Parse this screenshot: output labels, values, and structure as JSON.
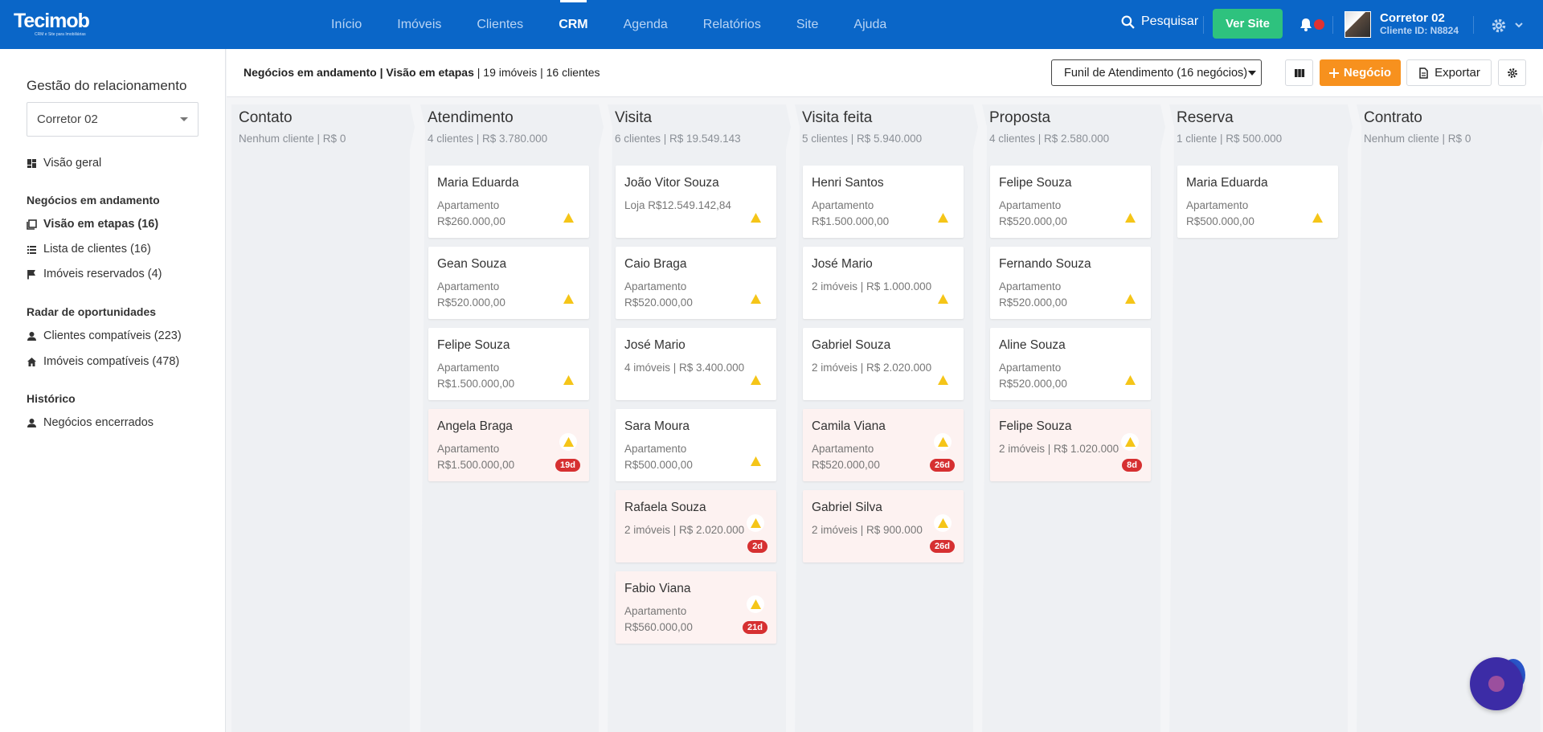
{
  "header": {
    "logo_text": "Tecimob",
    "logo_tagline": "CRM e Site para Imobiliárias",
    "nav": [
      "Início",
      "Imóveis",
      "Clientes",
      "CRM",
      "Agenda",
      "Relatórios",
      "Site",
      "Ajuda"
    ],
    "active_nav": "CRM",
    "search_label": "Pesquisar",
    "site_button": "Ver Site",
    "user_name": "Corretor 02",
    "client_id": "Cliente ID: N8824"
  },
  "sidebar": {
    "title": "Gestão do relacionamento",
    "selected_broker": "Corretor 02",
    "overview": "Visão geral",
    "section_ongoing": "Negócios em andamento",
    "stages_view": "Visão em etapas (16)",
    "client_list": "Lista de clientes (16)",
    "reserved": "Imóveis reservados (4)",
    "section_radar": "Radar de oportunidades",
    "compat_clients": "Clientes compatíveis (223)",
    "compat_props": "Imóveis compatíveis (478)",
    "section_history": "Histórico",
    "closed": "Negócios encerrados"
  },
  "toolbar": {
    "crumb_bold": "Negócios em andamento | Visão em etapas",
    "crumb_rest": " | 19 imóveis | 16 clientes",
    "funnel": "Funil de Atendimento (16 negócios)",
    "new_deal": "Negócio",
    "export": "Exportar"
  },
  "columns": [
    {
      "title": "Contato",
      "meta": "Nenhum cliente | R$ 0",
      "cards": []
    },
    {
      "title": "Atendimento",
      "meta": "4 clientes | R$ 3.780.000",
      "cards": [
        {
          "name": "Maria Eduarda",
          "desc": "Apartamento R$260.000,00"
        },
        {
          "name": "Gean Souza",
          "desc": "Apartamento R$520.000,00"
        },
        {
          "name": "Felipe Souza",
          "desc": "Apartamento R$1.500.000,00"
        },
        {
          "name": "Angela Braga",
          "desc": "Apartamento R$1.500.000,00",
          "days": "19d"
        }
      ]
    },
    {
      "title": "Visita",
      "meta": "6 clientes | R$ 19.549.143",
      "cards": [
        {
          "name": "João Vitor Souza",
          "desc": "Loja R$12.549.142,84"
        },
        {
          "name": "Caio Braga",
          "desc": "Apartamento R$520.000,00"
        },
        {
          "name": "José Mario",
          "desc": "4 imóveis | R$ 3.400.000"
        },
        {
          "name": "Sara Moura",
          "desc": "Apartamento R$500.000,00"
        },
        {
          "name": "Rafaela Souza",
          "desc": "2 imóveis | R$ 2.020.000",
          "days": "2d"
        },
        {
          "name": "Fabio Viana",
          "desc": "Apartamento R$560.000,00",
          "days": "21d"
        }
      ]
    },
    {
      "title": "Visita feita",
      "meta": "5 clientes | R$ 5.940.000",
      "cards": [
        {
          "name": "Henri Santos",
          "desc": "Apartamento R$1.500.000,00"
        },
        {
          "name": "José Mario",
          "desc": "2 imóveis | R$ 1.000.000"
        },
        {
          "name": "Gabriel Souza",
          "desc": "2 imóveis | R$ 2.020.000"
        },
        {
          "name": "Camila Viana",
          "desc": "Apartamento R$520.000,00",
          "days": "26d"
        },
        {
          "name": "Gabriel Silva",
          "desc": "2 imóveis | R$ 900.000",
          "days": "26d"
        }
      ]
    },
    {
      "title": "Proposta",
      "meta": "4 clientes | R$ 2.580.000",
      "cards": [
        {
          "name": "Felipe Souza",
          "desc": "Apartamento R$520.000,00"
        },
        {
          "name": "Fernando Souza",
          "desc": "Apartamento R$520.000,00"
        },
        {
          "name": "Aline Souza",
          "desc": "Apartamento R$520.000,00"
        },
        {
          "name": "Felipe Souza",
          "desc": "2 imóveis | R$ 1.020.000",
          "days": "8d"
        }
      ]
    },
    {
      "title": "Reserva",
      "meta": "1 cliente | R$ 500.000",
      "cards": [
        {
          "name": "Maria Eduarda",
          "desc": "Apartamento R$500.000,00"
        }
      ]
    },
    {
      "title": "Contrato",
      "meta": "Nenhum cliente | R$ 0",
      "cards": []
    }
  ],
  "colors": {
    "primary": "#0a66c8",
    "success": "#2ec27e",
    "accent": "#f7911e",
    "late_badge": "#d63031",
    "warning": "#f5c518"
  }
}
